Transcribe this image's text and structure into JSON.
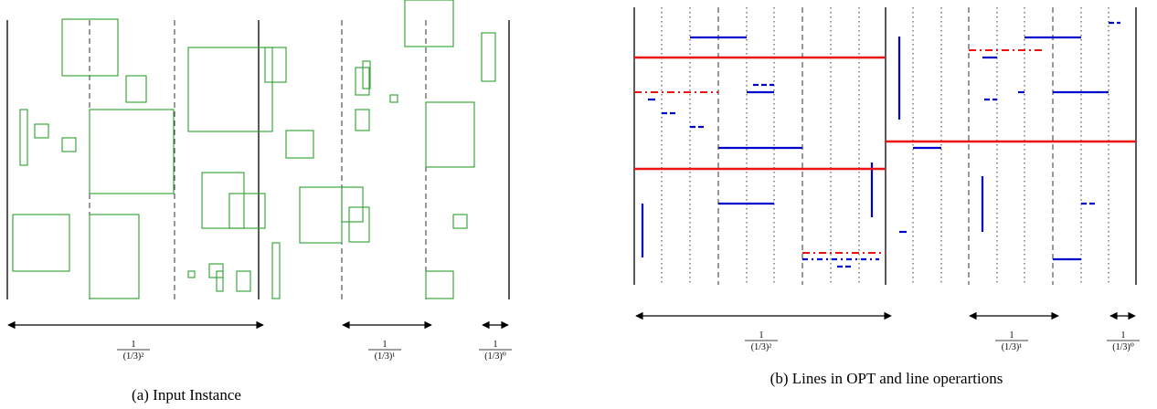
{
  "colors": {
    "rect": "#2ca02c",
    "line": "#0000cc",
    "opt_line": "#ee1111",
    "axis": "#000000"
  },
  "panel_a": {
    "caption": "(a) Input Instance",
    "frac_labels": [
      {
        "num": "1",
        "den": "(1/3)²"
      },
      {
        "num": "1",
        "den": "(1/3)¹"
      },
      {
        "num": "1",
        "den": "(1/3)⁰"
      }
    ]
  },
  "panel_b": {
    "caption": "(b) Lines in OPT and line operartions",
    "frac_labels": [
      {
        "num": "1",
        "den": "(1/3)²"
      },
      {
        "num": "1",
        "den": "(1/3)¹"
      },
      {
        "num": "1",
        "den": "(1/3)⁰"
      }
    ]
  }
}
